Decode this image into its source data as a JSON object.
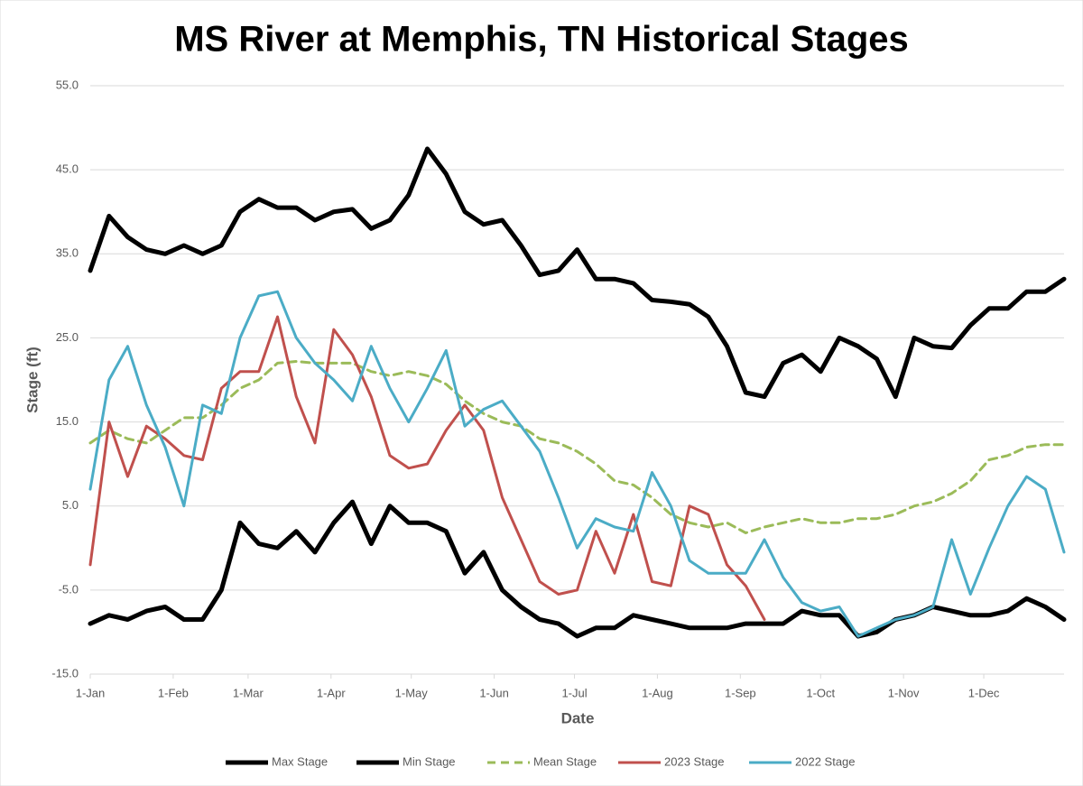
{
  "chart_data": {
    "type": "line",
    "title": "MS River at Memphis, TN Historical Stages",
    "x_label": "Date",
    "y_label": "Stage (ft)",
    "x": [
      0,
      7,
      14,
      21,
      28,
      35,
      42,
      49,
      56,
      63,
      70,
      77,
      84,
      91,
      98,
      105,
      112,
      119,
      126,
      133,
      140,
      147,
      154,
      161,
      168,
      175,
      182,
      189,
      196,
      203,
      210,
      217,
      224,
      231,
      238,
      245,
      252,
      259,
      266,
      273,
      280,
      287,
      294,
      301,
      308,
      315,
      322,
      329,
      336,
      343,
      350,
      357,
      364
    ],
    "xlim": [
      0,
      364
    ],
    "xticks": [
      {
        "value": 0,
        "label": "1-Jan"
      },
      {
        "value": 31,
        "label": "1-Feb"
      },
      {
        "value": 59,
        "label": "1-Mar"
      },
      {
        "value": 90,
        "label": "1-Apr"
      },
      {
        "value": 120,
        "label": "1-May"
      },
      {
        "value": 151,
        "label": "1-Jun"
      },
      {
        "value": 181,
        "label": "1-Jul"
      },
      {
        "value": 212,
        "label": "1-Aug"
      },
      {
        "value": 243,
        "label": "1-Sep"
      },
      {
        "value": 273,
        "label": "1-Oct"
      },
      {
        "value": 304,
        "label": "1-Nov"
      },
      {
        "value": 334,
        "label": "1-Dec"
      }
    ],
    "ylim": [
      -15,
      55
    ],
    "yticks": [
      {
        "value": -15,
        "label": "-15.0"
      },
      {
        "value": -5,
        "label": "-5.0"
      },
      {
        "value": 5,
        "label": "5.0"
      },
      {
        "value": 15,
        "label": "15.0"
      },
      {
        "value": 25,
        "label": "25.0"
      },
      {
        "value": 35,
        "label": "35.0"
      },
      {
        "value": 45,
        "label": "45.0"
      },
      {
        "value": 55,
        "label": "55.0"
      }
    ],
    "grid": true,
    "legend": "bottom",
    "series": [
      {
        "name": "Max Stage",
        "color": "#000000",
        "width": 5,
        "style": "solid",
        "values": [
          33,
          39.5,
          37,
          35.5,
          35,
          36,
          35,
          36,
          40,
          41.5,
          40.5,
          40.5,
          39,
          40,
          40.3,
          38,
          39,
          42,
          47.5,
          44.5,
          40,
          38.5,
          39,
          36,
          32.5,
          33,
          35.5,
          32,
          32,
          31.5,
          29.5,
          29.3,
          29,
          27.5,
          24,
          18.5,
          18,
          22,
          23,
          21,
          25,
          24,
          22.5,
          18,
          25,
          24,
          23.8,
          26.5,
          28.5,
          28.5,
          30.5,
          30.5,
          32
        ]
      },
      {
        "name": "Min Stage",
        "color": "#000000",
        "width": 5,
        "style": "solid",
        "values": [
          -9,
          -8,
          -8.5,
          -7.5,
          -7,
          -8.5,
          -8.5,
          -5,
          3,
          0.5,
          0,
          2,
          -0.5,
          3,
          5.5,
          0.5,
          5,
          3,
          3,
          2,
          -3,
          -0.5,
          -5,
          -7,
          -8.5,
          -9,
          -10.5,
          -9.5,
          -9.5,
          -8,
          -8.5,
          -9,
          -9.5,
          -9.5,
          -9.5,
          -9,
          -9,
          -9,
          -7.5,
          -8,
          -8,
          -10.5,
          -10,
          -8.5,
          -8,
          -7,
          -7.5,
          -8,
          -8,
          -7.5,
          -6,
          -7,
          -8.5
        ]
      },
      {
        "name": "Mean Stage",
        "color": "#9bbb59",
        "width": 3,
        "style": "dashed",
        "values": [
          12.5,
          14,
          13,
          12.5,
          14,
          15.5,
          15.5,
          17,
          19,
          20,
          22,
          22.2,
          22,
          22,
          22,
          21,
          20.5,
          21,
          20.5,
          19.5,
          17.5,
          16,
          15,
          14.5,
          13,
          12.5,
          11.5,
          10,
          8,
          7.5,
          6,
          4,
          3,
          2.5,
          3,
          1.8,
          2.5,
          3,
          3.5,
          3,
          3,
          3.5,
          3.5,
          4,
          5,
          5.5,
          6.5,
          8,
          10.5,
          11,
          12,
          12.3,
          12.3
        ]
      },
      {
        "name": "2023 Stage",
        "color": "#c0504d",
        "width": 3,
        "style": "solid",
        "values": [
          -2,
          15,
          8.5,
          14.5,
          13,
          11,
          10.5,
          19,
          21,
          21,
          27.5,
          18,
          12.5,
          26,
          23,
          18,
          11,
          9.5,
          10,
          14,
          17,
          14,
          6,
          1,
          -4,
          -5.5,
          -5,
          2,
          -3,
          4,
          -4,
          -4.5,
          5,
          4,
          -2,
          -4.5,
          -8.5,
          null,
          null,
          null,
          null,
          null,
          null,
          null,
          null,
          null,
          null,
          null,
          null,
          null,
          null,
          null,
          null
        ]
      },
      {
        "name": "2022 Stage",
        "color": "#4bacc6",
        "width": 3,
        "style": "solid",
        "values": [
          7,
          20,
          24,
          17,
          12,
          5,
          17,
          16,
          25,
          30,
          30.5,
          25,
          22,
          20,
          17.5,
          24,
          19,
          15,
          19,
          23.5,
          14.5,
          16.5,
          17.5,
          14.5,
          11.5,
          6,
          0,
          3.5,
          2.5,
          2,
          9,
          5,
          -1.5,
          -3,
          -3,
          -3,
          1,
          -3.5,
          -6.5,
          -7.5,
          -7,
          -10.5,
          -9.5,
          -8.5,
          -8,
          -7,
          1,
          -5.5,
          0,
          5,
          8.5,
          7,
          -0.5
        ]
      }
    ]
  }
}
